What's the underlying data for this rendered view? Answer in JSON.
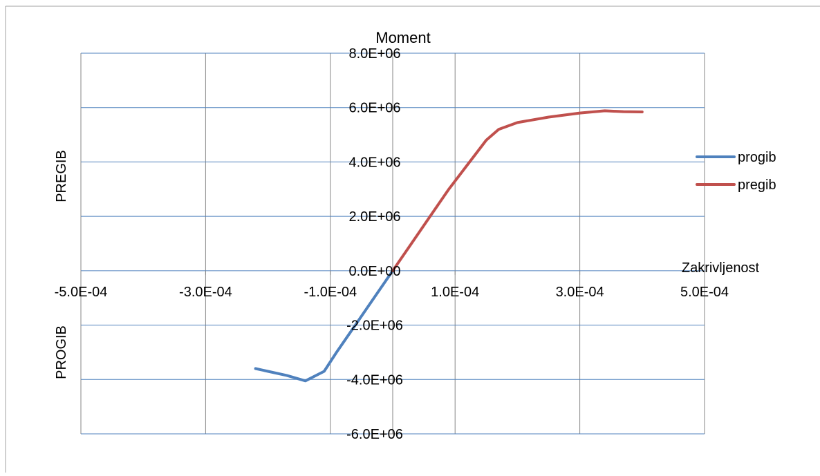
{
  "chart_data": {
    "type": "line",
    "title": "Moment",
    "xlabel": "Zakrivljenost",
    "ylabel_upper": "PREGIB",
    "ylabel_lower": "PROGIB",
    "xlim": [
      -0.0005,
      0.0005
    ],
    "ylim": [
      -6000000,
      8000000
    ],
    "x_ticks": [
      -0.0005,
      -0.0003,
      -0.0001,
      0.0001,
      0.0003,
      0.0005
    ],
    "x_tick_labels": [
      "-5.0E-04",
      "-3.0E-04",
      "-1.0E-04",
      "1.0E-04",
      "3.0E-04",
      "5.0E-04"
    ],
    "x_gridlines": [
      -0.0005,
      -0.0003,
      -0.0001,
      0,
      0.0001,
      0.0003,
      0.0005
    ],
    "y_ticks": [
      8000000,
      6000000,
      4000000,
      2000000,
      0,
      -2000000,
      -4000000,
      -6000000
    ],
    "y_tick_labels": [
      "8.0E+06",
      "6.0E+06",
      "4.0E+06",
      "2.0E+06",
      "0.0E+00",
      "-2.0E+06",
      "-4.0E+06",
      "-6.0E+06"
    ],
    "grid": true,
    "legend_position": "right",
    "series": [
      {
        "name": "progib",
        "color": "#4f81bd",
        "x": [
          0,
          -3e-05,
          -6e-05,
          -9e-05,
          -0.00011,
          -0.00014,
          -0.00017,
          -0.0002,
          -0.00022
        ],
        "y": [
          0,
          -1000000,
          -2000000,
          -3000000,
          -3700000,
          -4050000,
          -3850000,
          -3700000,
          -3600000
        ]
      },
      {
        "name": "pregib",
        "color": "#c0504d",
        "x": [
          0,
          3e-05,
          6e-05,
          9e-05,
          0.00012,
          0.00015,
          0.00017,
          0.0002,
          0.00025,
          0.0003,
          0.00034,
          0.00037,
          0.0004
        ],
        "y": [
          0,
          1000000,
          2000000,
          3000000,
          3900000,
          4800000,
          5200000,
          5450000,
          5650000,
          5800000,
          5880000,
          5850000,
          5840000
        ]
      }
    ]
  }
}
